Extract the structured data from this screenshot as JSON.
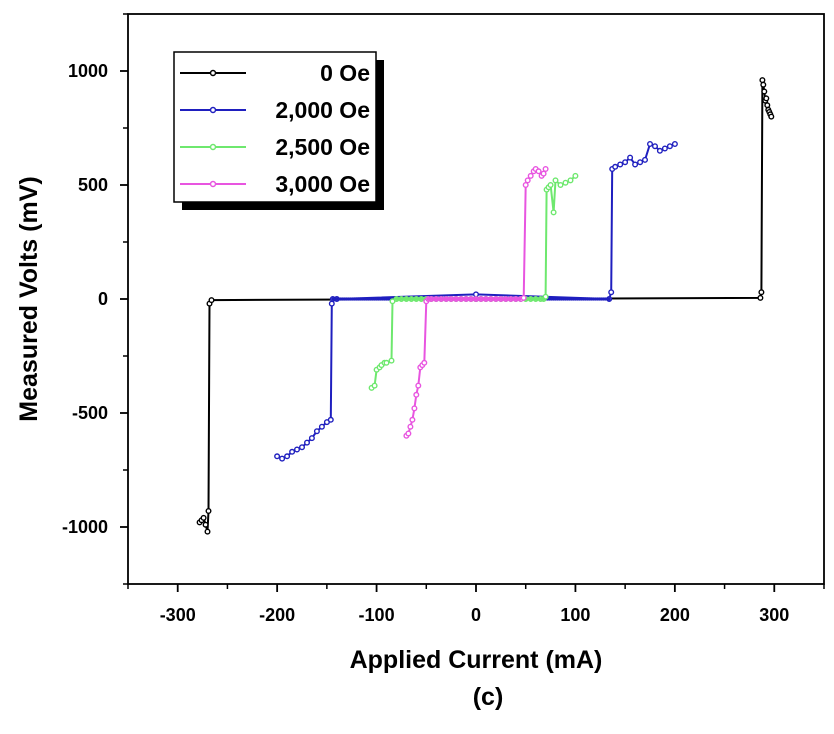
{
  "chart_data": {
    "type": "line",
    "title": "",
    "xlabel": "Applied Current (mA)",
    "ylabel": "Measured Volts (mV)",
    "caption": "(c)",
    "xlim": [
      -350,
      350
    ],
    "ylim": [
      -1250,
      1250
    ],
    "xticks": [
      -300,
      -200,
      -100,
      0,
      100,
      200,
      300
    ],
    "yticks": [
      -1000,
      -500,
      0,
      500,
      1000
    ],
    "grid": false,
    "legend_position": "top-left",
    "series": [
      {
        "name": "0 Oe",
        "color": "#000000",
        "x": [
          -278,
          -276,
          -274,
          -272,
          -270,
          -269,
          -268,
          -266,
          0,
          286,
          287,
          288,
          289,
          290,
          291,
          292,
          293,
          294,
          295,
          296,
          297
        ],
        "y": [
          -980,
          -970,
          -960,
          -990,
          -1020,
          -930,
          -20,
          -5,
          0,
          5,
          30,
          960,
          940,
          910,
          870,
          880,
          850,
          830,
          820,
          810,
          800
        ]
      },
      {
        "name": "2,000 Oe",
        "color": "#1f1fbf",
        "x": [
          -200,
          -195,
          -190,
          -185,
          -180,
          -175,
          -170,
          -165,
          -160,
          -155,
          -150,
          -146,
          -145,
          -144,
          -140,
          0,
          134,
          136,
          137,
          140,
          145,
          150,
          155,
          160,
          165,
          170,
          175,
          180,
          185,
          190,
          195,
          200
        ],
        "y": [
          -690,
          -700,
          -690,
          -670,
          -660,
          -650,
          -630,
          -610,
          -580,
          -560,
          -540,
          -530,
          -20,
          0,
          0,
          20,
          0,
          30,
          570,
          580,
          590,
          600,
          620,
          590,
          600,
          610,
          680,
          670,
          650,
          660,
          670,
          680
        ],
        "dense": true
      },
      {
        "name": "2,500 Oe",
        "color": "#6ee86e",
        "x": [
          -105,
          -102,
          -100,
          -97,
          -95,
          -92,
          -90,
          -85,
          -84,
          -80,
          -75,
          -70,
          -65,
          -60,
          -55,
          -50,
          -45,
          -40,
          -35,
          -30,
          -25,
          -20,
          -15,
          -10,
          -5,
          0,
          5,
          10,
          15,
          20,
          25,
          30,
          35,
          40,
          45,
          50,
          55,
          60,
          65,
          68,
          70,
          71,
          73,
          75,
          78,
          80,
          85,
          90,
          95,
          100
        ],
        "y": [
          -390,
          -380,
          -310,
          -300,
          -290,
          -280,
          -280,
          -270,
          -10,
          0,
          0,
          0,
          0,
          0,
          0,
          0,
          0,
          0,
          0,
          0,
          0,
          0,
          0,
          0,
          0,
          0,
          0,
          0,
          0,
          0,
          0,
          0,
          0,
          0,
          0,
          0,
          0,
          0,
          0,
          0,
          10,
          480,
          490,
          500,
          380,
          520,
          500,
          510,
          520,
          540
        ],
        "dense": true
      },
      {
        "name": "3,000 Oe",
        "color": "#e855e0",
        "x": [
          -70,
          -68,
          -66,
          -64,
          -62,
          -60,
          -58,
          -56,
          -54,
          -52,
          -50,
          -48,
          -45,
          -40,
          -35,
          -30,
          -25,
          -20,
          -15,
          -10,
          -5,
          0,
          5,
          10,
          15,
          20,
          25,
          30,
          35,
          40,
          45,
          48,
          50,
          52,
          55,
          58,
          60,
          63,
          66,
          68,
          70
        ],
        "y": [
          -600,
          -590,
          -560,
          -530,
          -480,
          -420,
          -380,
          -300,
          -290,
          -280,
          -10,
          0,
          0,
          0,
          0,
          0,
          0,
          0,
          0,
          0,
          0,
          0,
          0,
          0,
          0,
          0,
          0,
          0,
          0,
          0,
          0,
          5,
          500,
          520,
          540,
          560,
          570,
          560,
          540,
          550,
          570
        ],
        "dense": true
      }
    ]
  }
}
